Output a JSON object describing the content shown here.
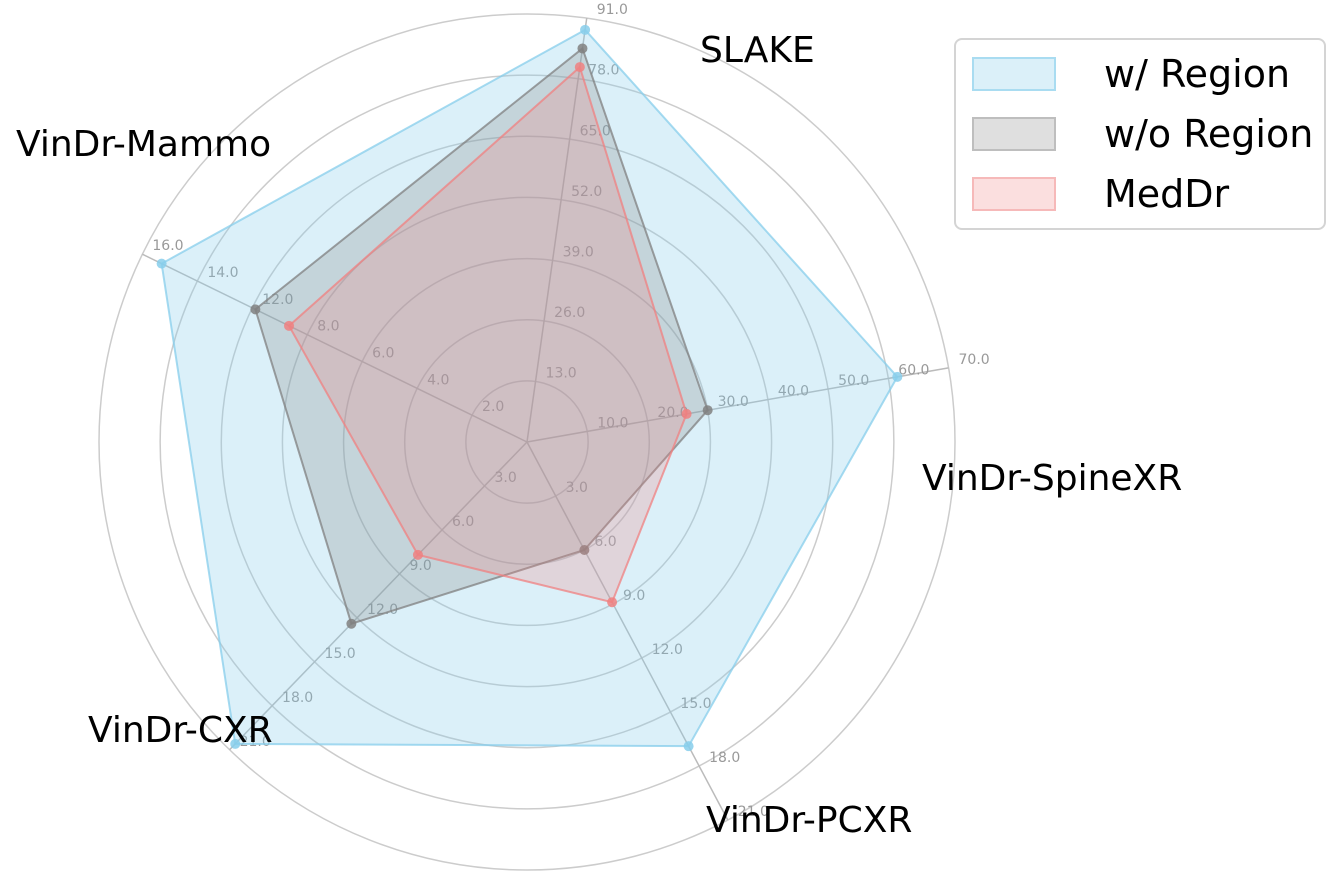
{
  "chart_data": {
    "type": "radar",
    "axes": [
      {
        "name": "SLAKE",
        "ticks": [
          "13.0",
          "26.0",
          "39.0",
          "52.0",
          "65.0",
          "78.0",
          "91.0"
        ],
        "max": 91
      },
      {
        "name": "VinDr-SpineXR",
        "ticks": [
          "10.0",
          "20.0",
          "30.0",
          "40.0",
          "50.0",
          "60.0",
          "70.0"
        ],
        "max": 70
      },
      {
        "name": "VinDr-PCXR",
        "ticks": [
          "3.0",
          "6.0",
          "9.0",
          "12.0",
          "15.0",
          "18.0",
          "21.0"
        ],
        "max": 21
      },
      {
        "name": "VinDr-CXR",
        "ticks": [
          "3.0",
          "6.0",
          "9.0",
          "12.0",
          "15.0",
          "18.0",
          "21.0"
        ],
        "max": 21
      },
      {
        "name": "VinDr-Mammo",
        "ticks": [
          "2.0",
          "4.0",
          "6.0",
          "8.0",
          "12.0",
          "14.0",
          "16.0"
        ],
        "max": 16
      }
    ],
    "series": [
      {
        "name": "w/ Region",
        "values": [
          88.5,
          61.5,
          16.9,
          20.6,
          15.2
        ],
        "fill": "#87ceeb",
        "stroke": "#87ceeb",
        "fill_opacity": 0.3
      },
      {
        "name": "w/o Region",
        "values": [
          84.5,
          30.0,
          6.0,
          12.4,
          11.3
        ],
        "fill": "#808080",
        "stroke": "#808080",
        "fill_opacity": 0.25
      },
      {
        "name": "MedDr",
        "values": [
          80.5,
          26.5,
          8.9,
          7.7,
          9.9
        ],
        "fill": "#f08080",
        "stroke": "#f08080",
        "fill_opacity": 0.25
      }
    ],
    "legend_position": "top-right",
    "grid": true,
    "colors": {
      "grid_circle": "#cccccc",
      "tick_text": "#999999",
      "spoke": "#bbbbbb"
    }
  }
}
